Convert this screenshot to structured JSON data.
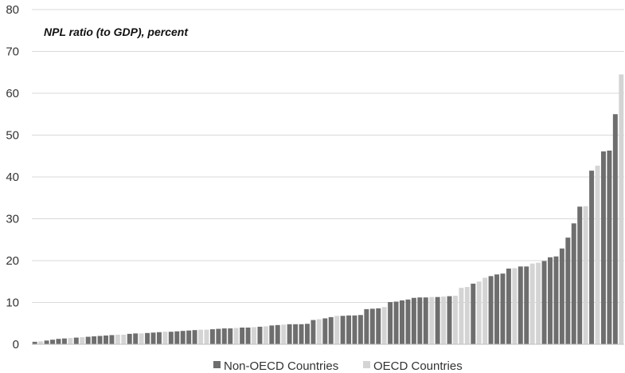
{
  "chart_data": {
    "type": "bar",
    "title": "NPL ratio (to GDP), percent",
    "xlabel": "",
    "ylabel": "",
    "ylim": [
      0,
      80
    ],
    "yticks": [
      0,
      10,
      20,
      30,
      40,
      50,
      60,
      70,
      80
    ],
    "grid": true,
    "legend_position": "bottom",
    "colors": {
      "Non-OECD Countries": "#6e6e6e",
      "OECD Countries": "#d4d4d4"
    },
    "series": [
      {
        "name": "Non-OECD Countries"
      },
      {
        "name": "OECD Countries"
      }
    ],
    "bars": [
      {
        "v": 0.6,
        "g": "Non-OECD Countries"
      },
      {
        "v": 0.7,
        "g": "OECD Countries"
      },
      {
        "v": 0.9,
        "g": "Non-OECD Countries"
      },
      {
        "v": 1.1,
        "g": "Non-OECD Countries"
      },
      {
        "v": 1.3,
        "g": "Non-OECD Countries"
      },
      {
        "v": 1.4,
        "g": "Non-OECD Countries"
      },
      {
        "v": 1.5,
        "g": "OECD Countries"
      },
      {
        "v": 1.6,
        "g": "Non-OECD Countries"
      },
      {
        "v": 1.7,
        "g": "OECD Countries"
      },
      {
        "v": 1.8,
        "g": "Non-OECD Countries"
      },
      {
        "v": 1.9,
        "g": "Non-OECD Countries"
      },
      {
        "v": 2.0,
        "g": "Non-OECD Countries"
      },
      {
        "v": 2.1,
        "g": "Non-OECD Countries"
      },
      {
        "v": 2.2,
        "g": "Non-OECD Countries"
      },
      {
        "v": 2.3,
        "g": "OECD Countries"
      },
      {
        "v": 2.3,
        "g": "OECD Countries"
      },
      {
        "v": 2.5,
        "g": "Non-OECD Countries"
      },
      {
        "v": 2.6,
        "g": "Non-OECD Countries"
      },
      {
        "v": 2.6,
        "g": "OECD Countries"
      },
      {
        "v": 2.7,
        "g": "Non-OECD Countries"
      },
      {
        "v": 2.8,
        "g": "Non-OECD Countries"
      },
      {
        "v": 2.9,
        "g": "Non-OECD Countries"
      },
      {
        "v": 3.0,
        "g": "OECD Countries"
      },
      {
        "v": 3.0,
        "g": "Non-OECD Countries"
      },
      {
        "v": 3.1,
        "g": "Non-OECD Countries"
      },
      {
        "v": 3.2,
        "g": "Non-OECD Countries"
      },
      {
        "v": 3.3,
        "g": "Non-OECD Countries"
      },
      {
        "v": 3.4,
        "g": "Non-OECD Countries"
      },
      {
        "v": 3.5,
        "g": "OECD Countries"
      },
      {
        "v": 3.5,
        "g": "OECD Countries"
      },
      {
        "v": 3.6,
        "g": "Non-OECD Countries"
      },
      {
        "v": 3.7,
        "g": "Non-OECD Countries"
      },
      {
        "v": 3.8,
        "g": "Non-OECD Countries"
      },
      {
        "v": 3.8,
        "g": "Non-OECD Countries"
      },
      {
        "v": 3.9,
        "g": "OECD Countries"
      },
      {
        "v": 4.0,
        "g": "Non-OECD Countries"
      },
      {
        "v": 4.0,
        "g": "Non-OECD Countries"
      },
      {
        "v": 4.1,
        "g": "OECD Countries"
      },
      {
        "v": 4.2,
        "g": "Non-OECD Countries"
      },
      {
        "v": 4.3,
        "g": "OECD Countries"
      },
      {
        "v": 4.5,
        "g": "Non-OECD Countries"
      },
      {
        "v": 4.6,
        "g": "Non-OECD Countries"
      },
      {
        "v": 4.7,
        "g": "OECD Countries"
      },
      {
        "v": 4.8,
        "g": "Non-OECD Countries"
      },
      {
        "v": 4.8,
        "g": "Non-OECD Countries"
      },
      {
        "v": 4.8,
        "g": "Non-OECD Countries"
      },
      {
        "v": 4.9,
        "g": "Non-OECD Countries"
      },
      {
        "v": 5.8,
        "g": "Non-OECD Countries"
      },
      {
        "v": 6.0,
        "g": "OECD Countries"
      },
      {
        "v": 6.2,
        "g": "Non-OECD Countries"
      },
      {
        "v": 6.5,
        "g": "Non-OECD Countries"
      },
      {
        "v": 6.8,
        "g": "OECD Countries"
      },
      {
        "v": 6.8,
        "g": "Non-OECD Countries"
      },
      {
        "v": 6.9,
        "g": "Non-OECD Countries"
      },
      {
        "v": 6.9,
        "g": "Non-OECD Countries"
      },
      {
        "v": 7.0,
        "g": "Non-OECD Countries"
      },
      {
        "v": 8.4,
        "g": "Non-OECD Countries"
      },
      {
        "v": 8.5,
        "g": "Non-OECD Countries"
      },
      {
        "v": 8.6,
        "g": "Non-OECD Countries"
      },
      {
        "v": 8.9,
        "g": "OECD Countries"
      },
      {
        "v": 10.1,
        "g": "Non-OECD Countries"
      },
      {
        "v": 10.2,
        "g": "Non-OECD Countries"
      },
      {
        "v": 10.5,
        "g": "Non-OECD Countries"
      },
      {
        "v": 10.7,
        "g": "Non-OECD Countries"
      },
      {
        "v": 11.1,
        "g": "Non-OECD Countries"
      },
      {
        "v": 11.2,
        "g": "Non-OECD Countries"
      },
      {
        "v": 11.2,
        "g": "Non-OECD Countries"
      },
      {
        "v": 11.3,
        "g": "OECD Countries"
      },
      {
        "v": 11.3,
        "g": "Non-OECD Countries"
      },
      {
        "v": 11.4,
        "g": "OECD Countries"
      },
      {
        "v": 11.5,
        "g": "Non-OECD Countries"
      },
      {
        "v": 11.6,
        "g": "OECD Countries"
      },
      {
        "v": 13.5,
        "g": "OECD Countries"
      },
      {
        "v": 13.7,
        "g": "OECD Countries"
      },
      {
        "v": 14.5,
        "g": "Non-OECD Countries"
      },
      {
        "v": 15.0,
        "g": "OECD Countries"
      },
      {
        "v": 15.9,
        "g": "OECD Countries"
      },
      {
        "v": 16.3,
        "g": "Non-OECD Countries"
      },
      {
        "v": 16.7,
        "g": "Non-OECD Countries"
      },
      {
        "v": 16.9,
        "g": "Non-OECD Countries"
      },
      {
        "v": 18.1,
        "g": "Non-OECD Countries"
      },
      {
        "v": 18.2,
        "g": "OECD Countries"
      },
      {
        "v": 18.6,
        "g": "Non-OECD Countries"
      },
      {
        "v": 18.6,
        "g": "Non-OECD Countries"
      },
      {
        "v": 19.3,
        "g": "OECD Countries"
      },
      {
        "v": 19.5,
        "g": "OECD Countries"
      },
      {
        "v": 19.9,
        "g": "Non-OECD Countries"
      },
      {
        "v": 20.8,
        "g": "Non-OECD Countries"
      },
      {
        "v": 21.0,
        "g": "Non-OECD Countries"
      },
      {
        "v": 22.9,
        "g": "Non-OECD Countries"
      },
      {
        "v": 25.5,
        "g": "Non-OECD Countries"
      },
      {
        "v": 28.9,
        "g": "Non-OECD Countries"
      },
      {
        "v": 32.9,
        "g": "Non-OECD Countries"
      },
      {
        "v": 33.0,
        "g": "OECD Countries"
      },
      {
        "v": 41.5,
        "g": "Non-OECD Countries"
      },
      {
        "v": 42.7,
        "g": "OECD Countries"
      },
      {
        "v": 46.1,
        "g": "Non-OECD Countries"
      },
      {
        "v": 46.3,
        "g": "Non-OECD Countries"
      },
      {
        "v": 55.0,
        "g": "Non-OECD Countries"
      },
      {
        "v": 64.5,
        "g": "OECD Countries"
      }
    ]
  }
}
